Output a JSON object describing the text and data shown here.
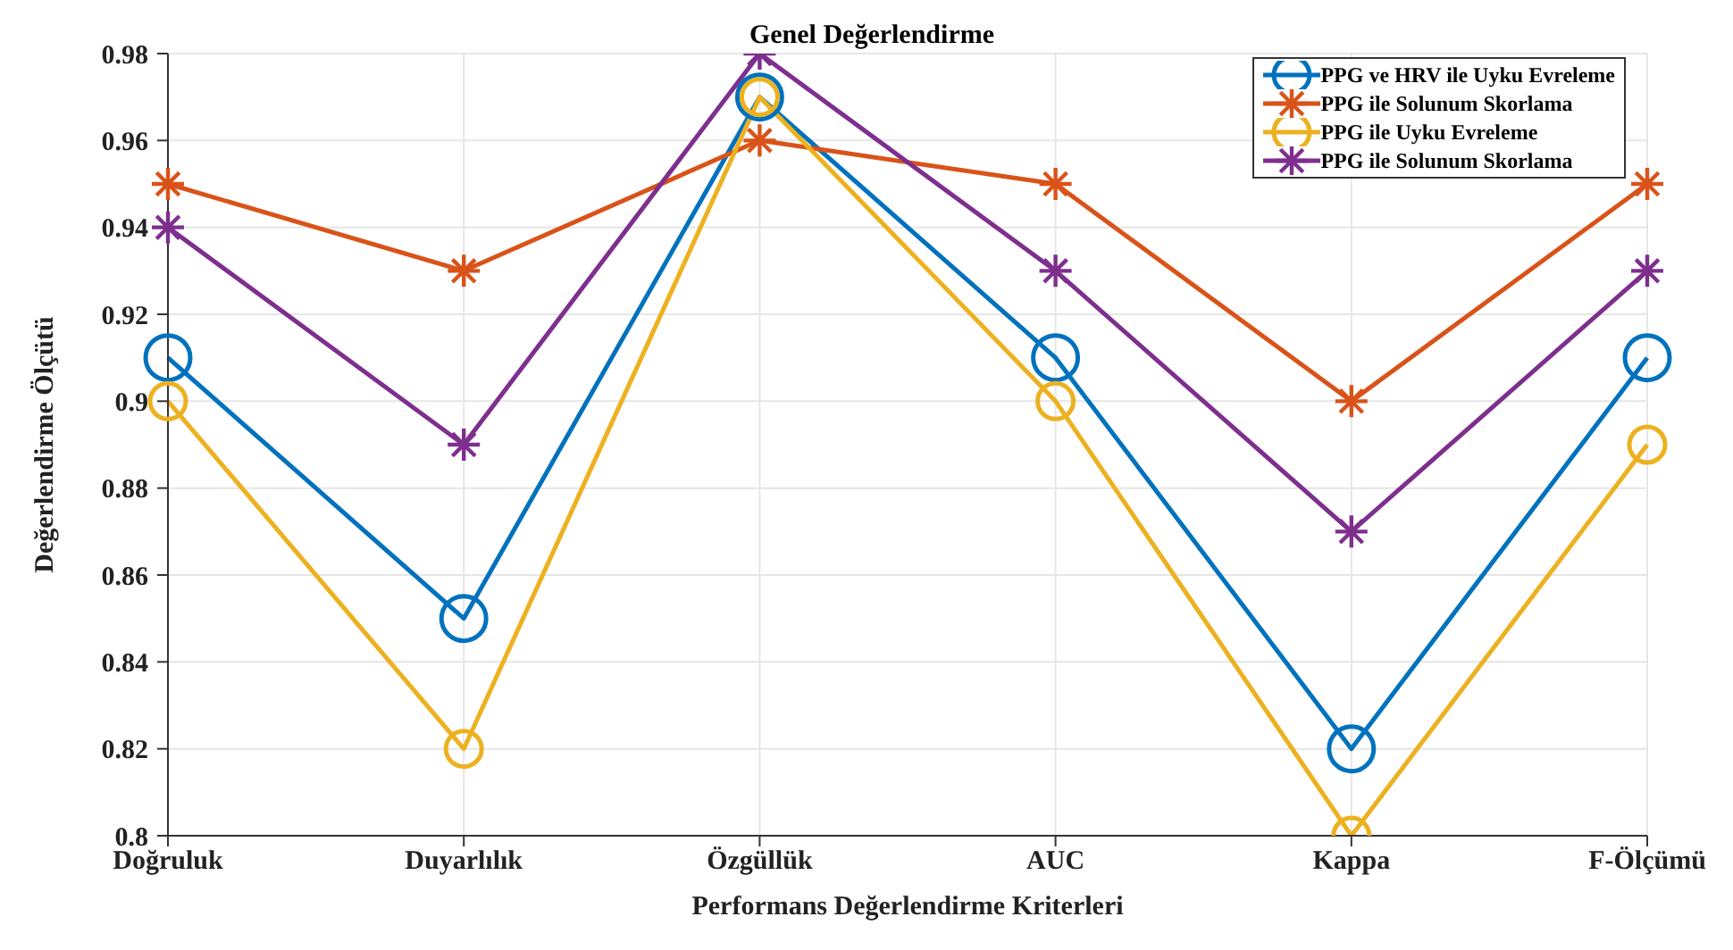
{
  "chart_data": {
    "type": "line",
    "title": "Genel Değerlendirme",
    "xlabel": "Performans Değerlendirme Kriterleri",
    "ylabel": "Değerlendirme Ölçütü",
    "categories": [
      "Doğruluk",
      "Duyarlılık",
      "Özgüllük",
      "AUC",
      "Kappa",
      "F-Ölçümü"
    ],
    "series": [
      {
        "name": "PPG ve HRV ile Uyku Evreleme",
        "color": "#0072bd",
        "marker": "circle",
        "values": [
          0.91,
          0.85,
          0.97,
          0.91,
          0.82,
          0.91
        ]
      },
      {
        "name": "PPG ile Solunum Skorlama",
        "color": "#d95319",
        "marker": "cross",
        "values": [
          0.95,
          0.93,
          0.96,
          0.95,
          0.9,
          0.95
        ]
      },
      {
        "name": "PPG ile Uyku Evreleme",
        "color": "#edb120",
        "marker": "circle",
        "values": [
          0.9,
          0.82,
          0.97,
          0.9,
          0.8,
          0.89
        ]
      },
      {
        "name": "PPG ile Solunum Skorlama",
        "color": "#7e2f8e",
        "marker": "cross",
        "values": [
          0.94,
          0.89,
          0.98,
          0.93,
          0.87,
          0.93
        ]
      }
    ],
    "ylim": [
      0.8,
      0.98
    ],
    "yticks": [
      0.8,
      0.82,
      0.84,
      0.86,
      0.88,
      0.9,
      0.92,
      0.94,
      0.96,
      0.98
    ],
    "grid": true,
    "legend": "top right",
    "line_style": "solid"
  }
}
